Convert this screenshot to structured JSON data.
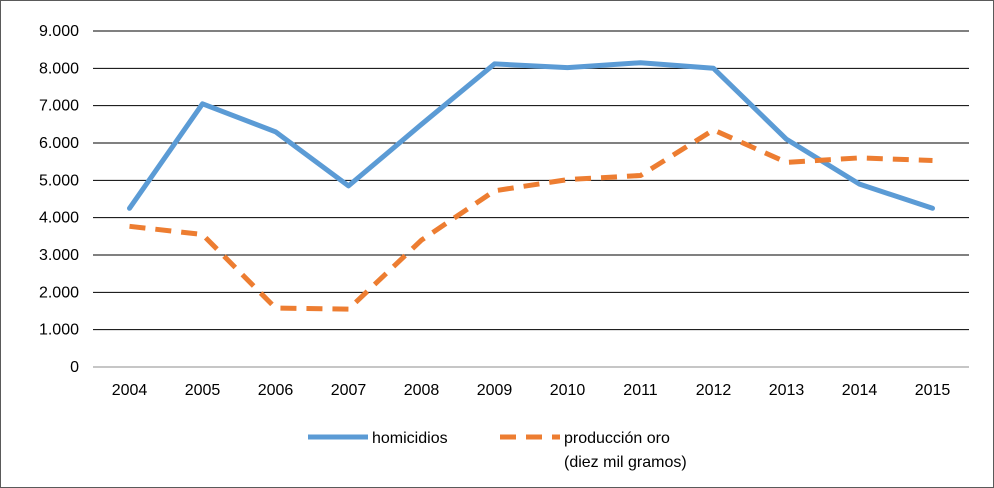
{
  "chart_data": {
    "type": "line",
    "categories": [
      "2004",
      "2005",
      "2006",
      "2007",
      "2008",
      "2009",
      "2010",
      "2011",
      "2012",
      "2013",
      "2014",
      "2015"
    ],
    "ylim": [
      0,
      9000
    ],
    "yticks": [
      0,
      1000,
      2000,
      3000,
      4000,
      5000,
      6000,
      7000,
      8000,
      9000
    ],
    "ytick_labels": [
      "0",
      "1.000",
      "2.000",
      "3.000",
      "4.000",
      "5.000",
      "6.000",
      "7.000",
      "8.000",
      "9.000"
    ],
    "grid": true,
    "legend_position": "bottom",
    "series": [
      {
        "name": "homicidios",
        "color": "#5b9bd5",
        "style": "solid",
        "values": [
          4250,
          7050,
          6300,
          4850,
          6500,
          8120,
          8020,
          8150,
          8000,
          6100,
          4900,
          4250
        ]
      },
      {
        "name": "producción oro",
        "name_line2": "(diez mil gramos)",
        "color": "#ed7d31",
        "style": "dashed",
        "values": [
          3770,
          3550,
          1580,
          1550,
          3400,
          4720,
          5020,
          5130,
          6350,
          5480,
          5600,
          5530
        ]
      }
    ]
  }
}
